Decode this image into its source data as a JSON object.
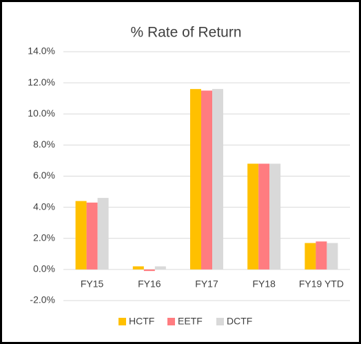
{
  "chart_data": {
    "type": "bar",
    "title": "% Rate of Return",
    "categories": [
      "FY15",
      "FY16",
      "FY17",
      "FY18",
      "FY19 YTD"
    ],
    "series": [
      {
        "name": "HCTF",
        "color": "#ffc000",
        "values": [
          4.4,
          0.2,
          11.6,
          6.8,
          1.7
        ]
      },
      {
        "name": "EETF",
        "color": "#ff7c80",
        "values": [
          4.3,
          -0.1,
          11.5,
          6.8,
          1.8
        ]
      },
      {
        "name": "DCTF",
        "color": "#d9d9d9",
        "values": [
          4.6,
          0.2,
          11.6,
          6.8,
          1.7
        ]
      }
    ],
    "ylim": [
      -2,
      14
    ],
    "yticks": [
      {
        "value": -2,
        "label": "-2.0%"
      },
      {
        "value": 0,
        "label": "0.0%"
      },
      {
        "value": 2,
        "label": "2.0%"
      },
      {
        "value": 4,
        "label": "4.0%"
      },
      {
        "value": 6,
        "label": "6.0%"
      },
      {
        "value": 8,
        "label": "8.0%"
      },
      {
        "value": 10,
        "label": "10.0%"
      },
      {
        "value": 12,
        "label": "12.0%"
      },
      {
        "value": 14,
        "label": "14.0%"
      }
    ],
    "grid": true,
    "legend": "bottom"
  }
}
